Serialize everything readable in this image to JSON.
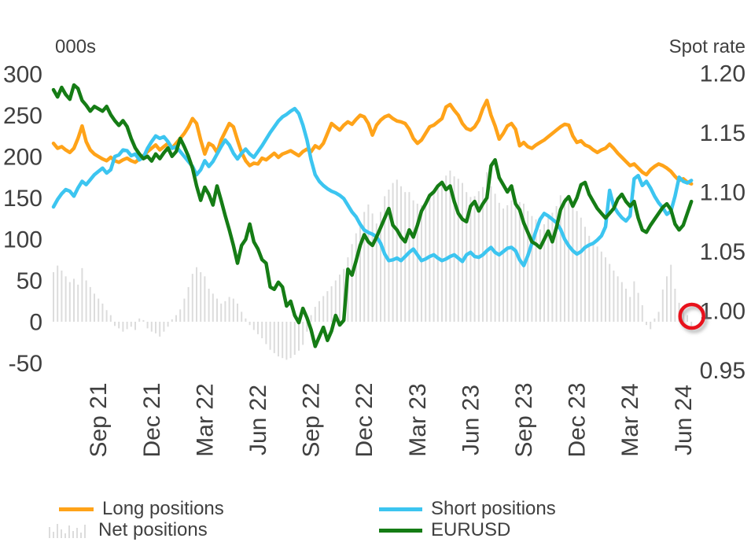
{
  "colors": {
    "long": "#FFA319",
    "short": "#3CC5F0",
    "eurusd": "#157C15",
    "net_bars": "#DCDCDC",
    "annotation": "#E8121C",
    "text": "#404040"
  },
  "legend": {
    "long": "Long positions",
    "short": "Short positions",
    "net": "Net positions",
    "eurusd": "EURUSD"
  },
  "annotation": {
    "type": "circle-highlight",
    "target": "latest-net-position-near-zero",
    "color": "#E8121C"
  },
  "chart_data": {
    "type": "mixed-line-bar",
    "left_axis": {
      "title": "000s",
      "ticks": [
        300,
        250,
        200,
        150,
        100,
        50,
        0,
        -50
      ],
      "range": [
        -50,
        300
      ]
    },
    "right_axis": {
      "title": "Spot rate",
      "ticks": [
        "1.20",
        "1.15",
        "1.10",
        "1.05",
        "1.00",
        "0.95"
      ],
      "range": [
        0.95,
        1.2
      ]
    },
    "x_axis": {
      "ticks": [
        "Sep 21",
        "Dec 21",
        "Mar 22",
        "Jun 22",
        "Sep 22",
        "Dec 22",
        "Mar 23",
        "Jun 23",
        "Sep 23",
        "Dec 23",
        "Mar 24",
        "Jun 24"
      ],
      "tick_weeks": [
        11,
        24,
        37,
        50,
        63,
        76,
        89,
        102,
        115,
        128,
        141,
        154
      ],
      "frequency": "weekly"
    },
    "grid": false,
    "legend_position": "bottom",
    "series": [
      {
        "name": "Long positions",
        "axis": "left",
        "kind": "line",
        "values": [
          216,
          210,
          212,
          208,
          205,
          210,
          222,
          237,
          218,
          208,
          203,
          200,
          197,
          195,
          199,
          195,
          193,
          196,
          198,
          195,
          193,
          197,
          201,
          206,
          210,
          214,
          208,
          212,
          216,
          210,
          216,
          222,
          228,
          236,
          246,
          240,
          220,
          203,
          216,
          213,
          205,
          220,
          230,
          240,
          236,
          220,
          205,
          195,
          189,
          192,
          191,
          198,
          196,
          200,
          204,
          199,
          203,
          205,
          207,
          204,
          201,
          206,
          209,
          206,
          213,
          210,
          216,
          228,
          240,
          236,
          232,
          238,
          242,
          239,
          245,
          250,
          248,
          240,
          226,
          238,
          244,
          248,
          250,
          246,
          243,
          242,
          240,
          233,
          222,
          216,
          220,
          228,
          236,
          238,
          242,
          246,
          260,
          263,
          256,
          250,
          240,
          234,
          232,
          236,
          244,
          258,
          268,
          250,
          237,
          221,
          228,
          237,
          240,
          233,
          213,
          217,
          212,
          210,
          214,
          217,
          220,
          224,
          228,
          232,
          236,
          239,
          238,
          225,
          217,
          219,
          214,
          212,
          208,
          205,
          208,
          210,
          215,
          210,
          204,
          199,
          194,
          189,
          191,
          186,
          181,
          178,
          184,
          188,
          191,
          189,
          186,
          182,
          176,
          171,
          173,
          169,
          167
        ]
      },
      {
        "name": "Short positions",
        "axis": "left",
        "kind": "line",
        "values": [
          139,
          148,
          155,
          160,
          158,
          152,
          162,
          170,
          166,
          172,
          178,
          182,
          186,
          180,
          184,
          200,
          202,
          208,
          207,
          201,
          203,
          196,
          199,
          210,
          218,
          225,
          222,
          224,
          218,
          210,
          212,
          206,
          200,
          194,
          188,
          178,
          184,
          195,
          188,
          194,
          203,
          212,
          220,
          214,
          204,
          197,
          204,
          209,
          203,
          199,
          206,
          213,
          221,
          229,
          236,
          243,
          248,
          251,
          255,
          258,
          252,
          238,
          220,
          196,
          178,
          170,
          165,
          161,
          158,
          156,
          153,
          149,
          141,
          133,
          127,
          118,
          111,
          108,
          106,
          103,
          95,
          82,
          74,
          75,
          77,
          74,
          79,
          84,
          88,
          81,
          74,
          76,
          79,
          81,
          77,
          74,
          76,
          79,
          81,
          77,
          73,
          81,
          84,
          79,
          78,
          81,
          86,
          90,
          84,
          81,
          85,
          89,
          90,
          86,
          75,
          68,
          80,
          95,
          110,
          124,
          131,
          128,
          124,
          120,
          112,
          100,
          92,
          86,
          82,
          85,
          90,
          93,
          95,
          99,
          104,
          115,
          159,
          140,
          132,
          126,
          122,
          128,
          173,
          177,
          165,
          170,
          162,
          152,
          144,
          138,
          130,
          134,
          152,
          175,
          170,
          168,
          171
        ]
      },
      {
        "name": "Net positions",
        "axis": "left",
        "kind": "bar",
        "values": [
          60,
          68,
          62,
          55,
          48,
          52,
          45,
          65,
          50,
          42,
          34,
          28,
          22,
          14,
          8,
          -5,
          -8,
          -12,
          -9,
          -6,
          -10,
          4,
          2,
          -8,
          -12,
          -14,
          -18,
          -12,
          -6,
          3,
          8,
          15,
          28,
          42,
          58,
          66,
          60,
          55,
          40,
          34,
          28,
          22,
          25,
          30,
          28,
          22,
          12,
          4,
          -4,
          -10,
          -15,
          -20,
          -27,
          -34,
          -38,
          -42,
          -44,
          -46,
          -44,
          -40,
          -35,
          -28,
          -12,
          8,
          18,
          25,
          31,
          37,
          43,
          50,
          57,
          64,
          78,
          94,
          107,
          120,
          133,
          142,
          131,
          119,
          133,
          152,
          160,
          168,
          172,
          164,
          157,
          157,
          147,
          143,
          141,
          145,
          150,
          156,
          163,
          171,
          177,
          183,
          176,
          173,
          168,
          157,
          151,
          152,
          158,
          163,
          181,
          164,
          155,
          144,
          137,
          141,
          147,
          148,
          145,
          143,
          134,
          128,
          124,
          112,
          118,
          126,
          132,
          140,
          153,
          150,
          145,
          140,
          134,
          126,
          115,
          104,
          96,
          91,
          85,
          78,
          70,
          62,
          55,
          48,
          40,
          30,
          49,
          35,
          20,
          -4,
          -9,
          4,
          12,
          39,
          55,
          69,
          40,
          23,
          16,
          8,
          -6
        ]
      },
      {
        "name": "EURUSD",
        "axis": "right",
        "kind": "line",
        "values": [
          1.186,
          1.18,
          1.188,
          1.182,
          1.178,
          1.19,
          1.187,
          1.177,
          1.173,
          1.168,
          1.172,
          1.17,
          1.168,
          1.172,
          1.165,
          1.16,
          1.156,
          1.16,
          1.155,
          1.145,
          1.137,
          1.132,
          1.128,
          1.13,
          1.126,
          1.132,
          1.128,
          1.133,
          1.137,
          1.13,
          1.134,
          1.145,
          1.138,
          1.13,
          1.12,
          1.105,
          1.093,
          1.104,
          1.098,
          1.089,
          1.105,
          1.093,
          1.08,
          1.068,
          1.055,
          1.04,
          1.055,
          1.06,
          1.073,
          1.058,
          1.052,
          1.043,
          1.04,
          1.02,
          1.018,
          1.024,
          1.02,
          1.004,
          1.008,
          0.996,
          0.99,
          1.002,
          0.994,
          0.984,
          0.97,
          0.978,
          0.986,
          0.975,
          0.983,
          0.996,
          0.988,
          0.992,
          1.035,
          1.03,
          1.042,
          1.055,
          1.064,
          1.058,
          1.055,
          1.062,
          1.07,
          1.078,
          1.086,
          1.072,
          1.068,
          1.062,
          1.058,
          1.068,
          1.062,
          1.072,
          1.084,
          1.09,
          1.097,
          1.1,
          1.105,
          1.108,
          1.102,
          1.105,
          1.092,
          1.082,
          1.077,
          1.075,
          1.088,
          1.092,
          1.084,
          1.09,
          1.095,
          1.122,
          1.127,
          1.112,
          1.106,
          1.1,
          1.105,
          1.09,
          1.085,
          1.074,
          1.066,
          1.058,
          1.056,
          1.053,
          1.06,
          1.067,
          1.058,
          1.07,
          1.085,
          1.092,
          1.096,
          1.088,
          1.095,
          1.106,
          1.108,
          1.098,
          1.092,
          1.086,
          1.082,
          1.078,
          1.082,
          1.086,
          1.094,
          1.098,
          1.092,
          1.088,
          1.092,
          1.078,
          1.068,
          1.066,
          1.072,
          1.077,
          1.082,
          1.087,
          1.09,
          1.085,
          1.073,
          1.068,
          1.072,
          1.082,
          1.092
        ]
      }
    ]
  }
}
